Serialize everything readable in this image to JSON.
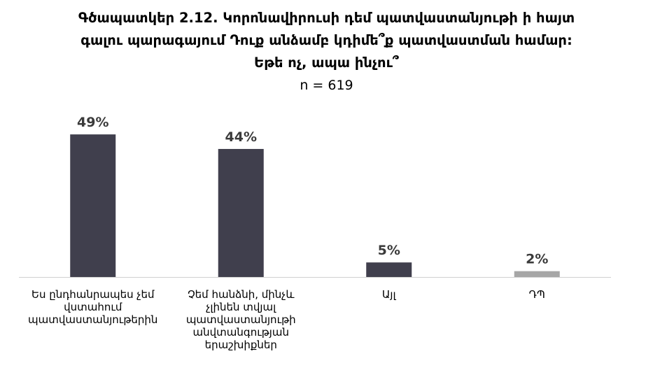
{
  "chart_data": {
    "type": "bar",
    "title_lines": [
      "Գծապատկեր 2.12. Կորոնավիրուսի դեմ պատվաստանյութի ի հայտ",
      "գալու պարագայում Դուք անձամբ կդիմե՞ք պատվաստման համար:",
      "Եթե ոչ, ապա ինչու՞"
    ],
    "subtitle": "n = 619",
    "categories": [
      [
        "Ես ընդհանրապես չեմ",
        "վստահում",
        "պատվաստանյութերին"
      ],
      [
        "Չեմ հանձնի, մինչև",
        "չլինեն տվյալ",
        "պատվաստանյութի",
        "անվտանգության",
        "երաշխիքներ"
      ],
      [
        "Այլ"
      ],
      [
        "ԴՊ"
      ]
    ],
    "values": [
      49,
      44,
      5,
      2
    ],
    "value_labels": [
      "49%",
      "44%",
      "5%",
      "2%"
    ],
    "bar_colors": [
      "#403f4d",
      "#403f4d",
      "#403f4d",
      "#a6a6a6"
    ],
    "axis_color": "#d0d0d0",
    "ylim": [
      0,
      100
    ],
    "grid": false,
    "legend": "none"
  }
}
